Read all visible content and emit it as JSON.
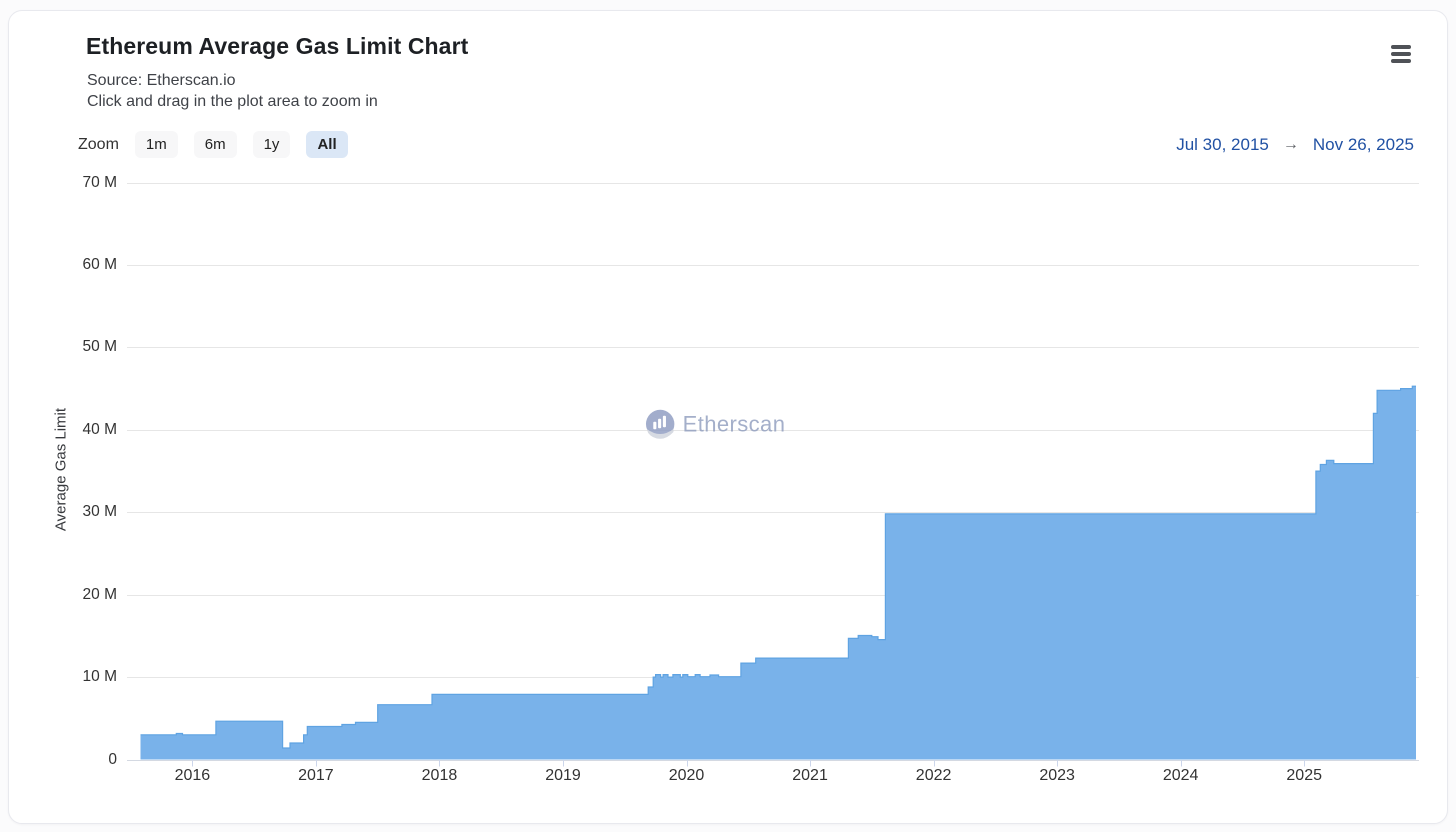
{
  "header": {
    "title": "Ethereum Average Gas Limit Chart",
    "source": "Source: Etherscan.io",
    "hint": "Click and drag in the plot area to zoom in"
  },
  "toolbar": {
    "zoom_label": "Zoom",
    "buttons": [
      {
        "label": "1m",
        "selected": false
      },
      {
        "label": "6m",
        "selected": false
      },
      {
        "label": "1y",
        "selected": false
      },
      {
        "label": "All",
        "selected": true
      }
    ],
    "range_start": "Jul 30, 2015",
    "range_arrow": "→",
    "range_end": "Nov 26, 2025"
  },
  "watermark": {
    "text": "Etherscan"
  },
  "colors": {
    "area_fill": "#79b2ea",
    "area_line": "#5fa3e2",
    "grid": "#e6e6e6",
    "axis_line": "#d4d9e2",
    "tick": "#ccd6eb",
    "date_link": "#2151a3",
    "selected_button_bg": "#dbe7f6",
    "button_bg": "#f7f7f8",
    "watermark": "#8e9cbd"
  },
  "chart_data": {
    "type": "area",
    "title": "Ethereum Average Gas Limit Chart",
    "xlabel": "",
    "ylabel": "Average Gas Limit",
    "unit": "million gas",
    "xlim": [
      2015.58,
      2025.905
    ],
    "ylim": [
      0,
      70
    ],
    "grid": true,
    "legend": false,
    "y_ticks": [
      {
        "v": 0,
        "label": "0"
      },
      {
        "v": 10,
        "label": "10 M"
      },
      {
        "v": 20,
        "label": "20 M"
      },
      {
        "v": 30,
        "label": "30 M"
      },
      {
        "v": 40,
        "label": "40 M"
      },
      {
        "v": 50,
        "label": "50 M"
      },
      {
        "v": 60,
        "label": "60 M"
      },
      {
        "v": 70,
        "label": "70 M"
      }
    ],
    "x_ticks": [
      {
        "v": 2016,
        "label": "2016"
      },
      {
        "v": 2017,
        "label": "2017"
      },
      {
        "v": 2018,
        "label": "2018"
      },
      {
        "v": 2019,
        "label": "2019"
      },
      {
        "v": 2020,
        "label": "2020"
      },
      {
        "v": 2021,
        "label": "2021"
      },
      {
        "v": 2022,
        "label": "2022"
      },
      {
        "v": 2023,
        "label": "2023"
      },
      {
        "v": 2024,
        "label": "2024"
      },
      {
        "v": 2025,
        "label": "2025"
      }
    ],
    "series": [
      {
        "name": "Average Gas Limit (millions)",
        "step": "after",
        "points": [
          [
            2015.58,
            3.0
          ],
          [
            2015.87,
            3.15
          ],
          [
            2015.92,
            3.0
          ],
          [
            2016.19,
            4.65
          ],
          [
            2016.73,
            1.4
          ],
          [
            2016.79,
            2.0
          ],
          [
            2016.9,
            3.0
          ],
          [
            2016.93,
            4.0
          ],
          [
            2017.21,
            4.25
          ],
          [
            2017.32,
            4.5
          ],
          [
            2017.5,
            6.65
          ],
          [
            2017.94,
            7.9
          ],
          [
            2019.69,
            8.8
          ],
          [
            2019.73,
            10.0
          ],
          [
            2019.75,
            10.3
          ],
          [
            2019.79,
            10.0
          ],
          [
            2019.81,
            10.3
          ],
          [
            2019.85,
            10.0
          ],
          [
            2019.89,
            10.3
          ],
          [
            2019.95,
            10.0
          ],
          [
            2019.97,
            10.3
          ],
          [
            2020.01,
            10.05
          ],
          [
            2020.07,
            10.3
          ],
          [
            2020.11,
            10.05
          ],
          [
            2020.19,
            10.25
          ],
          [
            2020.26,
            10.05
          ],
          [
            2020.44,
            11.7
          ],
          [
            2020.56,
            12.3
          ],
          [
            2021.31,
            14.7
          ],
          [
            2021.39,
            15.05
          ],
          [
            2021.5,
            14.9
          ],
          [
            2021.55,
            14.55
          ],
          [
            2021.61,
            29.8
          ],
          [
            2025.095,
            35.0
          ],
          [
            2025.13,
            35.8
          ],
          [
            2025.18,
            36.3
          ],
          [
            2025.24,
            35.9
          ],
          [
            2025.56,
            42.0
          ],
          [
            2025.59,
            44.8
          ],
          [
            2025.78,
            45.0
          ],
          [
            2025.875,
            45.3
          ]
        ]
      }
    ]
  }
}
